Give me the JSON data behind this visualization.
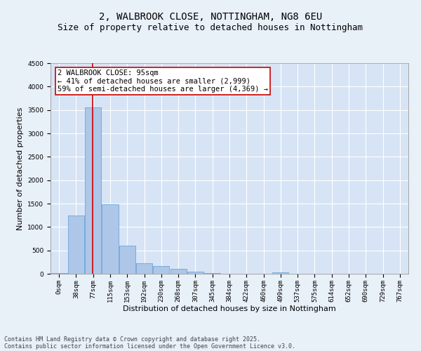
{
  "title_line1": "2, WALBROOK CLOSE, NOTTINGHAM, NG8 6EU",
  "title_line2": "Size of property relative to detached houses in Nottingham",
  "xlabel": "Distribution of detached houses by size in Nottingham",
  "ylabel": "Number of detached properties",
  "bin_labels": [
    "0sqm",
    "38sqm",
    "77sqm",
    "115sqm",
    "153sqm",
    "192sqm",
    "230sqm",
    "268sqm",
    "307sqm",
    "345sqm",
    "384sqm",
    "422sqm",
    "460sqm",
    "499sqm",
    "537sqm",
    "575sqm",
    "614sqm",
    "652sqm",
    "690sqm",
    "729sqm",
    "767sqm"
  ],
  "bar_values": [
    20,
    1250,
    3560,
    1490,
    600,
    230,
    160,
    110,
    40,
    10,
    0,
    0,
    0,
    30,
    0,
    0,
    0,
    0,
    0,
    0,
    0
  ],
  "bar_color": "#aec6e8",
  "bar_edge_color": "#5b9bd5",
  "vline_position": 1.97,
  "annotation_text": "2 WALBROOK CLOSE: 95sqm\n← 41% of detached houses are smaller (2,999)\n59% of semi-detached houses are larger (4,369) →",
  "annotation_box_color": "#ffffff",
  "annotation_box_edge": "#cc0000",
  "vline_color": "#cc0000",
  "ylim": [
    0,
    4500
  ],
  "yticks": [
    0,
    500,
    1000,
    1500,
    2000,
    2500,
    3000,
    3500,
    4000,
    4500
  ],
  "footer_line1": "Contains HM Land Registry data © Crown copyright and database right 2025.",
  "footer_line2": "Contains public sector information licensed under the Open Government Licence v3.0.",
  "background_color": "#e8f0f8",
  "plot_bg_color": "#d6e4f5",
  "grid_color": "#ffffff",
  "title_fontsize": 10,
  "subtitle_fontsize": 9,
  "axis_label_fontsize": 8,
  "tick_fontsize": 6.5,
  "annotation_fontsize": 7.5,
  "footer_fontsize": 6
}
